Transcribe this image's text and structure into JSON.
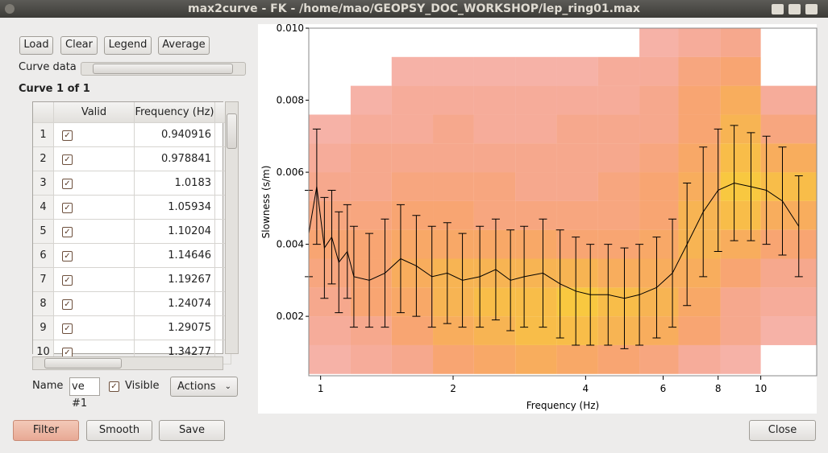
{
  "window": {
    "title": "max2curve - FK - /home/mao/GEOPSY_DOC_WORKSHOP/lep_ring01.max"
  },
  "toolbar": {
    "buttons": [
      "Load",
      "Clear",
      "Legend",
      "Average"
    ]
  },
  "curve_data_label": "Curve data",
  "curve_header": "Curve 1 of 1",
  "table": {
    "columns": [
      "Valid",
      "Frequency (Hz)"
    ],
    "rows": [
      [
        1,
        true,
        0.940916
      ],
      [
        2,
        true,
        0.978841
      ],
      [
        3,
        true,
        1.0183
      ],
      [
        4,
        true,
        1.05934
      ],
      [
        5,
        true,
        1.10204
      ],
      [
        6,
        true,
        1.14646
      ],
      [
        7,
        true,
        1.19267
      ],
      [
        8,
        true,
        1.24074
      ],
      [
        9,
        true,
        1.29075
      ],
      [
        10,
        true,
        1.34277
      ]
    ]
  },
  "name_row": {
    "label": "Name",
    "value": "ve #1",
    "visible_label": "Visible",
    "visible": true,
    "actions": "Actions"
  },
  "bottom_buttons": [
    "Filter",
    "Smooth",
    "Save"
  ],
  "close_button": "Close",
  "chart_data": {
    "type": "heatmap",
    "xlabel": "Frequency (Hz)",
    "ylabel": "Slowness (s/m)",
    "xscale": "log",
    "xlim": [
      0.94,
      13.4
    ],
    "ylim": [
      0.00035,
      0.01
    ],
    "xticks": [
      1,
      2,
      4,
      6,
      8,
      10
    ],
    "yticks": [
      0.002,
      0.004,
      0.006,
      0.008,
      {
        "value": 0.01,
        "label": "0.010"
      }
    ],
    "colorscale": [
      "#e8382b",
      "#f47a2e",
      "#f8c840"
    ],
    "x_edges": [
      0.94,
      1.17,
      1.45,
      1.8,
      2.23,
      2.77,
      3.44,
      4.27,
      5.3,
      6.5,
      8.1,
      10,
      13.4
    ],
    "y_edges": [
      0.0004,
      0.0012,
      0.002,
      0.0028,
      0.0036,
      0.0044,
      0.0052,
      0.006,
      0.0068,
      0.0076,
      0.0084,
      0.0092,
      0.01
    ],
    "density": [
      [
        0.1,
        0.2,
        0.3,
        0.5,
        0.6,
        0.7,
        0.6,
        0.5,
        0.4,
        0.2,
        0.1,
        0
      ],
      [
        0.2,
        0.3,
        0.5,
        0.7,
        0.8,
        0.9,
        0.9,
        0.8,
        0.7,
        0.5,
        0.3,
        0.1
      ],
      [
        0.3,
        0.5,
        0.6,
        0.8,
        0.9,
        0.9,
        1,
        0.9,
        0.8,
        0.6,
        0.3,
        0.2
      ],
      [
        0.4,
        0.5,
        0.7,
        0.8,
        0.8,
        0.8,
        0.8,
        0.7,
        0.7,
        0.7,
        0.5,
        0.3
      ],
      [
        0.5,
        0.5,
        0.6,
        0.6,
        0.6,
        0.6,
        0.5,
        0.5,
        0.6,
        0.8,
        0.7,
        0.5
      ],
      [
        0.4,
        0.4,
        0.5,
        0.5,
        0.4,
        0.4,
        0.4,
        0.4,
        0.5,
        0.8,
        0.9,
        0.7
      ],
      [
        0.3,
        0.3,
        0.4,
        0.4,
        0.4,
        0.3,
        0.3,
        0.4,
        0.5,
        0.7,
        1,
        0.9
      ],
      [
        0.2,
        0.3,
        0.3,
        0.3,
        0.3,
        0.3,
        0.3,
        0.3,
        0.4,
        0.6,
        0.9,
        0.7
      ],
      [
        0.1,
        0.2,
        0.2,
        0.3,
        0.2,
        0.2,
        0.3,
        0.3,
        0.3,
        0.5,
        0.8,
        0.4
      ],
      [
        0,
        0.1,
        0.2,
        0.2,
        0.2,
        0.2,
        0.2,
        0.2,
        0.3,
        0.5,
        0.7,
        0.2
      ],
      [
        0,
        0,
        0.1,
        0.1,
        0.1,
        0.1,
        0.1,
        0.2,
        0.2,
        0.4,
        0.5,
        0
      ],
      [
        0,
        0,
        0,
        0,
        0,
        0,
        0,
        0,
        0.1,
        0.2,
        0.3,
        0
      ]
    ],
    "curve": {
      "color": "#000000",
      "x": [
        0.94,
        0.98,
        1.02,
        1.06,
        1.1,
        1.15,
        1.19,
        1.29,
        1.4,
        1.52,
        1.65,
        1.79,
        1.94,
        2.1,
        2.3,
        2.5,
        2.7,
        2.9,
        3.2,
        3.5,
        3.8,
        4.1,
        4.5,
        4.9,
        5.3,
        5.8,
        6.3,
        6.8,
        7.4,
        8,
        8.7,
        9.5,
        10.3,
        11.2,
        12.2
      ],
      "values": [
        0.0043,
        0.0056,
        0.0039,
        0.0042,
        0.0035,
        0.0038,
        0.0031,
        0.003,
        0.0032,
        0.0036,
        0.0034,
        0.0031,
        0.0032,
        0.003,
        0.0031,
        0.0033,
        0.003,
        0.0031,
        0.0032,
        0.0029,
        0.0027,
        0.0026,
        0.0026,
        0.0025,
        0.0026,
        0.0028,
        0.0032,
        0.004,
        0.0049,
        0.0055,
        0.0057,
        0.0056,
        0.0055,
        0.0052,
        0.0045
      ],
      "errors": [
        0.0012,
        0.0016,
        0.0014,
        0.0013,
        0.0014,
        0.0013,
        0.0014,
        0.0013,
        0.0015,
        0.0015,
        0.0014,
        0.0014,
        0.0014,
        0.0013,
        0.0014,
        0.0014,
        0.0014,
        0.0014,
        0.0015,
        0.0015,
        0.0015,
        0.0014,
        0.0014,
        0.0014,
        0.0014,
        0.0014,
        0.0015,
        0.0017,
        0.0018,
        0.0017,
        0.0016,
        0.0015,
        0.0015,
        0.0015,
        0.0014
      ]
    }
  }
}
